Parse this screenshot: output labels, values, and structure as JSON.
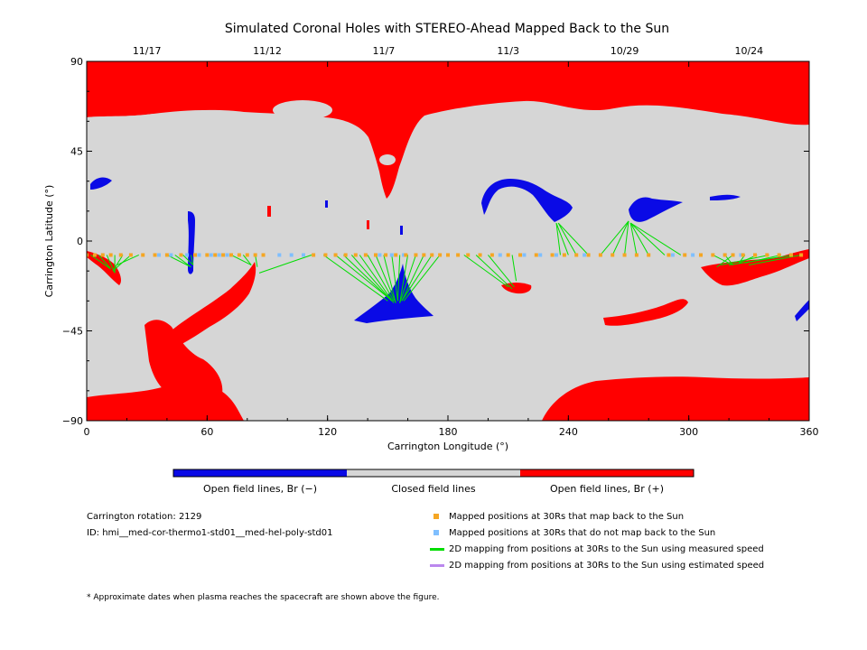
{
  "chart_data": {
    "type": "heatmap",
    "title": "Simulated Coronal Holes with STEREO-Ahead Mapped Back to the Sun",
    "xlabel": "Carrington Longitude (°)",
    "ylabel": "Carrington Latitude (°)",
    "xlim": [
      0,
      360
    ],
    "ylim": [
      -90,
      90
    ],
    "x_ticks": [
      0,
      60,
      120,
      180,
      240,
      300,
      360
    ],
    "y_ticks": [
      90,
      45,
      0,
      -45,
      -90
    ],
    "top_date_ticks": [
      {
        "label": "11/17",
        "lon": 30
      },
      {
        "label": "11/12",
        "lon": 90
      },
      {
        "label": "11/7",
        "lon": 148
      },
      {
        "label": "11/3",
        "lon": 210
      },
      {
        "label": "10/29",
        "lon": 268
      },
      {
        "label": "10/24",
        "lon": 330
      }
    ],
    "colorbar": [
      {
        "label": "Open field lines, Br (−)",
        "color": "#0a0ae6"
      },
      {
        "label": "Closed field lines",
        "color": "#d6d6d6"
      },
      {
        "label": "Open field lines, Br (+)",
        "color": "#ff0000"
      }
    ],
    "mapped_positions": {
      "latitude": -7,
      "lon_maps_back": [
        0,
        4,
        8,
        12,
        17,
        22,
        28,
        34,
        40,
        47,
        54,
        60,
        64,
        68,
        72,
        76,
        80,
        84,
        88,
        113,
        119,
        124,
        129,
        134,
        139,
        144,
        149,
        154,
        159,
        164,
        168,
        172,
        176,
        180,
        185,
        190,
        196,
        202,
        210,
        216,
        224,
        232,
        238,
        244,
        250,
        256,
        262,
        268,
        274,
        280,
        290,
        298,
        306,
        312,
        318,
        322,
        327,
        333,
        339,
        345,
        351,
        356
      ],
      "lon_no_map": [
        36,
        42,
        50,
        56,
        62,
        66,
        70,
        96,
        102,
        108,
        146,
        152,
        158,
        206,
        218,
        226,
        234,
        248,
        292,
        302,
        318,
        326
      ]
    },
    "mapping_lines_measured": [
      {
        "lon0": 2,
        "lat0": -7,
        "lon1": 12,
        "lat1": -14
      },
      {
        "lon0": 6,
        "lat0": -7,
        "lon1": 12,
        "lat1": -14
      },
      {
        "lon0": 10,
        "lat0": -7,
        "lon1": 14,
        "lat1": -16
      },
      {
        "lon0": 14,
        "lat0": -7,
        "lon1": 14,
        "lat1": -16
      },
      {
        "lon0": 18,
        "lat0": -7,
        "lon1": 13,
        "lat1": -15
      },
      {
        "lon0": 22,
        "lat0": -7,
        "lon1": 13,
        "lat1": -15
      },
      {
        "lon0": 26,
        "lat0": -7,
        "lon1": 15,
        "lat1": -12
      },
      {
        "lon0": 40,
        "lat0": -7,
        "lon1": 52,
        "lat1": -13
      },
      {
        "lon0": 44,
        "lat0": -7,
        "lon1": 52,
        "lat1": -13
      },
      {
        "lon0": 48,
        "lat0": -7,
        "lon1": 53,
        "lat1": -12
      },
      {
        "lon0": 52,
        "lat0": -7,
        "lon1": 53,
        "lat1": -12
      },
      {
        "lon0": 72,
        "lat0": -7,
        "lon1": 82,
        "lat1": -12
      },
      {
        "lon0": 78,
        "lat0": -7,
        "lon1": 82,
        "lat1": -12
      },
      {
        "lon0": 84,
        "lat0": -7,
        "lon1": 85,
        "lat1": -13
      },
      {
        "lon0": 112,
        "lat0": -7,
        "lon1": 86,
        "lat1": -16
      },
      {
        "lon0": 118,
        "lat0": -7,
        "lon1": 150,
        "lat1": -30
      },
      {
        "lon0": 124,
        "lat0": -7,
        "lon1": 151,
        "lat1": -29
      },
      {
        "lon0": 128,
        "lat0": -7,
        "lon1": 152,
        "lat1": -30
      },
      {
        "lon0": 132,
        "lat0": -7,
        "lon1": 152,
        "lat1": -30
      },
      {
        "lon0": 136,
        "lat0": -7,
        "lon1": 153,
        "lat1": -31
      },
      {
        "lon0": 140,
        "lat0": -7,
        "lon1": 153,
        "lat1": -30
      },
      {
        "lon0": 144,
        "lat0": -7,
        "lon1": 154,
        "lat1": -31
      },
      {
        "lon0": 148,
        "lat0": -7,
        "lon1": 154,
        "lat1": -31
      },
      {
        "lon0": 152,
        "lat0": -7,
        "lon1": 155,
        "lat1": -30
      },
      {
        "lon0": 156,
        "lat0": -7,
        "lon1": 155,
        "lat1": -30
      },
      {
        "lon0": 160,
        "lat0": -7,
        "lon1": 156,
        "lat1": -31
      },
      {
        "lon0": 164,
        "lat0": -7,
        "lon1": 156,
        "lat1": -31
      },
      {
        "lon0": 168,
        "lat0": -7,
        "lon1": 157,
        "lat1": -30
      },
      {
        "lon0": 172,
        "lat0": -7,
        "lon1": 157,
        "lat1": -30
      },
      {
        "lon0": 176,
        "lat0": -7,
        "lon1": 158,
        "lat1": -30
      },
      {
        "lon0": 188,
        "lat0": -7,
        "lon1": 210,
        "lat1": -23
      },
      {
        "lon0": 194,
        "lat0": -7,
        "lon1": 212,
        "lat1": -24
      },
      {
        "lon0": 200,
        "lat0": -7,
        "lon1": 213,
        "lat1": -23
      },
      {
        "lon0": 212,
        "lat0": -7,
        "lon1": 214,
        "lat1": -20
      },
      {
        "lon0": 236,
        "lat0": -7,
        "lon1": 234,
        "lat1": 9
      },
      {
        "lon0": 240,
        "lat0": -7,
        "lon1": 234,
        "lat1": 9
      },
      {
        "lon0": 244,
        "lat0": -7,
        "lon1": 235,
        "lat1": 9
      },
      {
        "lon0": 250,
        "lat0": -7,
        "lon1": 235,
        "lat1": 9
      },
      {
        "lon0": 256,
        "lat0": -7,
        "lon1": 270,
        "lat1": 10
      },
      {
        "lon0": 262,
        "lat0": -7,
        "lon1": 270,
        "lat1": 10
      },
      {
        "lon0": 268,
        "lat0": -7,
        "lon1": 270,
        "lat1": 10
      },
      {
        "lon0": 274,
        "lat0": -7,
        "lon1": 271,
        "lat1": 9
      },
      {
        "lon0": 280,
        "lat0": -7,
        "lon1": 271,
        "lat1": 9
      },
      {
        "lon0": 288,
        "lat0": -7,
        "lon1": 271,
        "lat1": 9
      },
      {
        "lon0": 296,
        "lat0": -7,
        "lon1": 271,
        "lat1": 9
      },
      {
        "lon0": 312,
        "lat0": -7,
        "lon1": 322,
        "lat1": -12
      },
      {
        "lon0": 318,
        "lat0": -7,
        "lon1": 322,
        "lat1": -12
      },
      {
        "lon0": 322,
        "lat0": -7,
        "lon1": 314,
        "lat1": -13
      },
      {
        "lon0": 328,
        "lat0": -7,
        "lon1": 325,
        "lat1": -11
      },
      {
        "lon0": 334,
        "lat0": -7,
        "lon1": 325,
        "lat1": -11
      },
      {
        "lon0": 340,
        "lat0": -7,
        "lon1": 316,
        "lat1": -12
      },
      {
        "lon0": 346,
        "lat0": -7,
        "lon1": 328,
        "lat1": -11
      },
      {
        "lon0": 352,
        "lat0": -7,
        "lon1": 320,
        "lat1": -12
      },
      {
        "lon0": 356,
        "lat0": -7,
        "lon1": 330,
        "lat1": -12
      }
    ]
  },
  "info": {
    "rotation": "Carrington rotation: 2129",
    "id": "ID: hmi__med-cor-thermo1-std01__med-hel-poly-std01",
    "footnote": "* Approximate dates when plasma reaches the spacecraft are shown above the figure."
  },
  "legend": [
    {
      "label": "Mapped positions at 30Rs that map back to the Sun",
      "color": "#f5a623",
      "kind": "square"
    },
    {
      "label": "Mapped positions at 30Rs that do not map back to the Sun",
      "color": "#7fbfff",
      "kind": "square"
    },
    {
      "label": "2D mapping from positions at 30Rs to the Sun using measured speed",
      "color": "#00dd00",
      "kind": "line"
    },
    {
      "label": "2D mapping from positions at 30Rs to the Sun using estimated speed",
      "color": "#bb88ee",
      "kind": "line"
    }
  ]
}
